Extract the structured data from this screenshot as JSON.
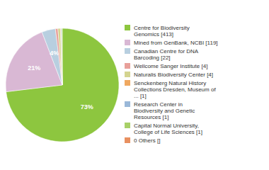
{
  "chart_data": {
    "type": "pie",
    "categories": [
      "Centre for Biodiversity\nGenomics [413]",
      "Mined from GenBank, NCBI [119]",
      "Canadian Centre for DNA\nBarcoding [22]",
      "Wellcome Sanger Institute [4]",
      "Naturalis Biodiversity Center [4]",
      "Senckenberg Natural History\nCollections Dresden, Museum of\n... [1]",
      "Research Center in\nBiodiversity and Genetic\nResources [1]",
      "Capital Normal University,\nCollege of Life Sciences [1]",
      "0 Others []"
    ],
    "values": [
      413,
      119,
      22,
      4,
      4,
      1,
      1,
      1,
      0
    ],
    "colors": [
      "#8dc63f",
      "#d9b8d4",
      "#b8cfe0",
      "#e8a09a",
      "#d4d490",
      "#f0a860",
      "#9ab8d8",
      "#a8d068",
      "#e89060"
    ],
    "value_labels": [
      "73%",
      "21%",
      "4%",
      null,
      null,
      null,
      null,
      null,
      null
    ],
    "data_labels": true,
    "legend": "right"
  }
}
